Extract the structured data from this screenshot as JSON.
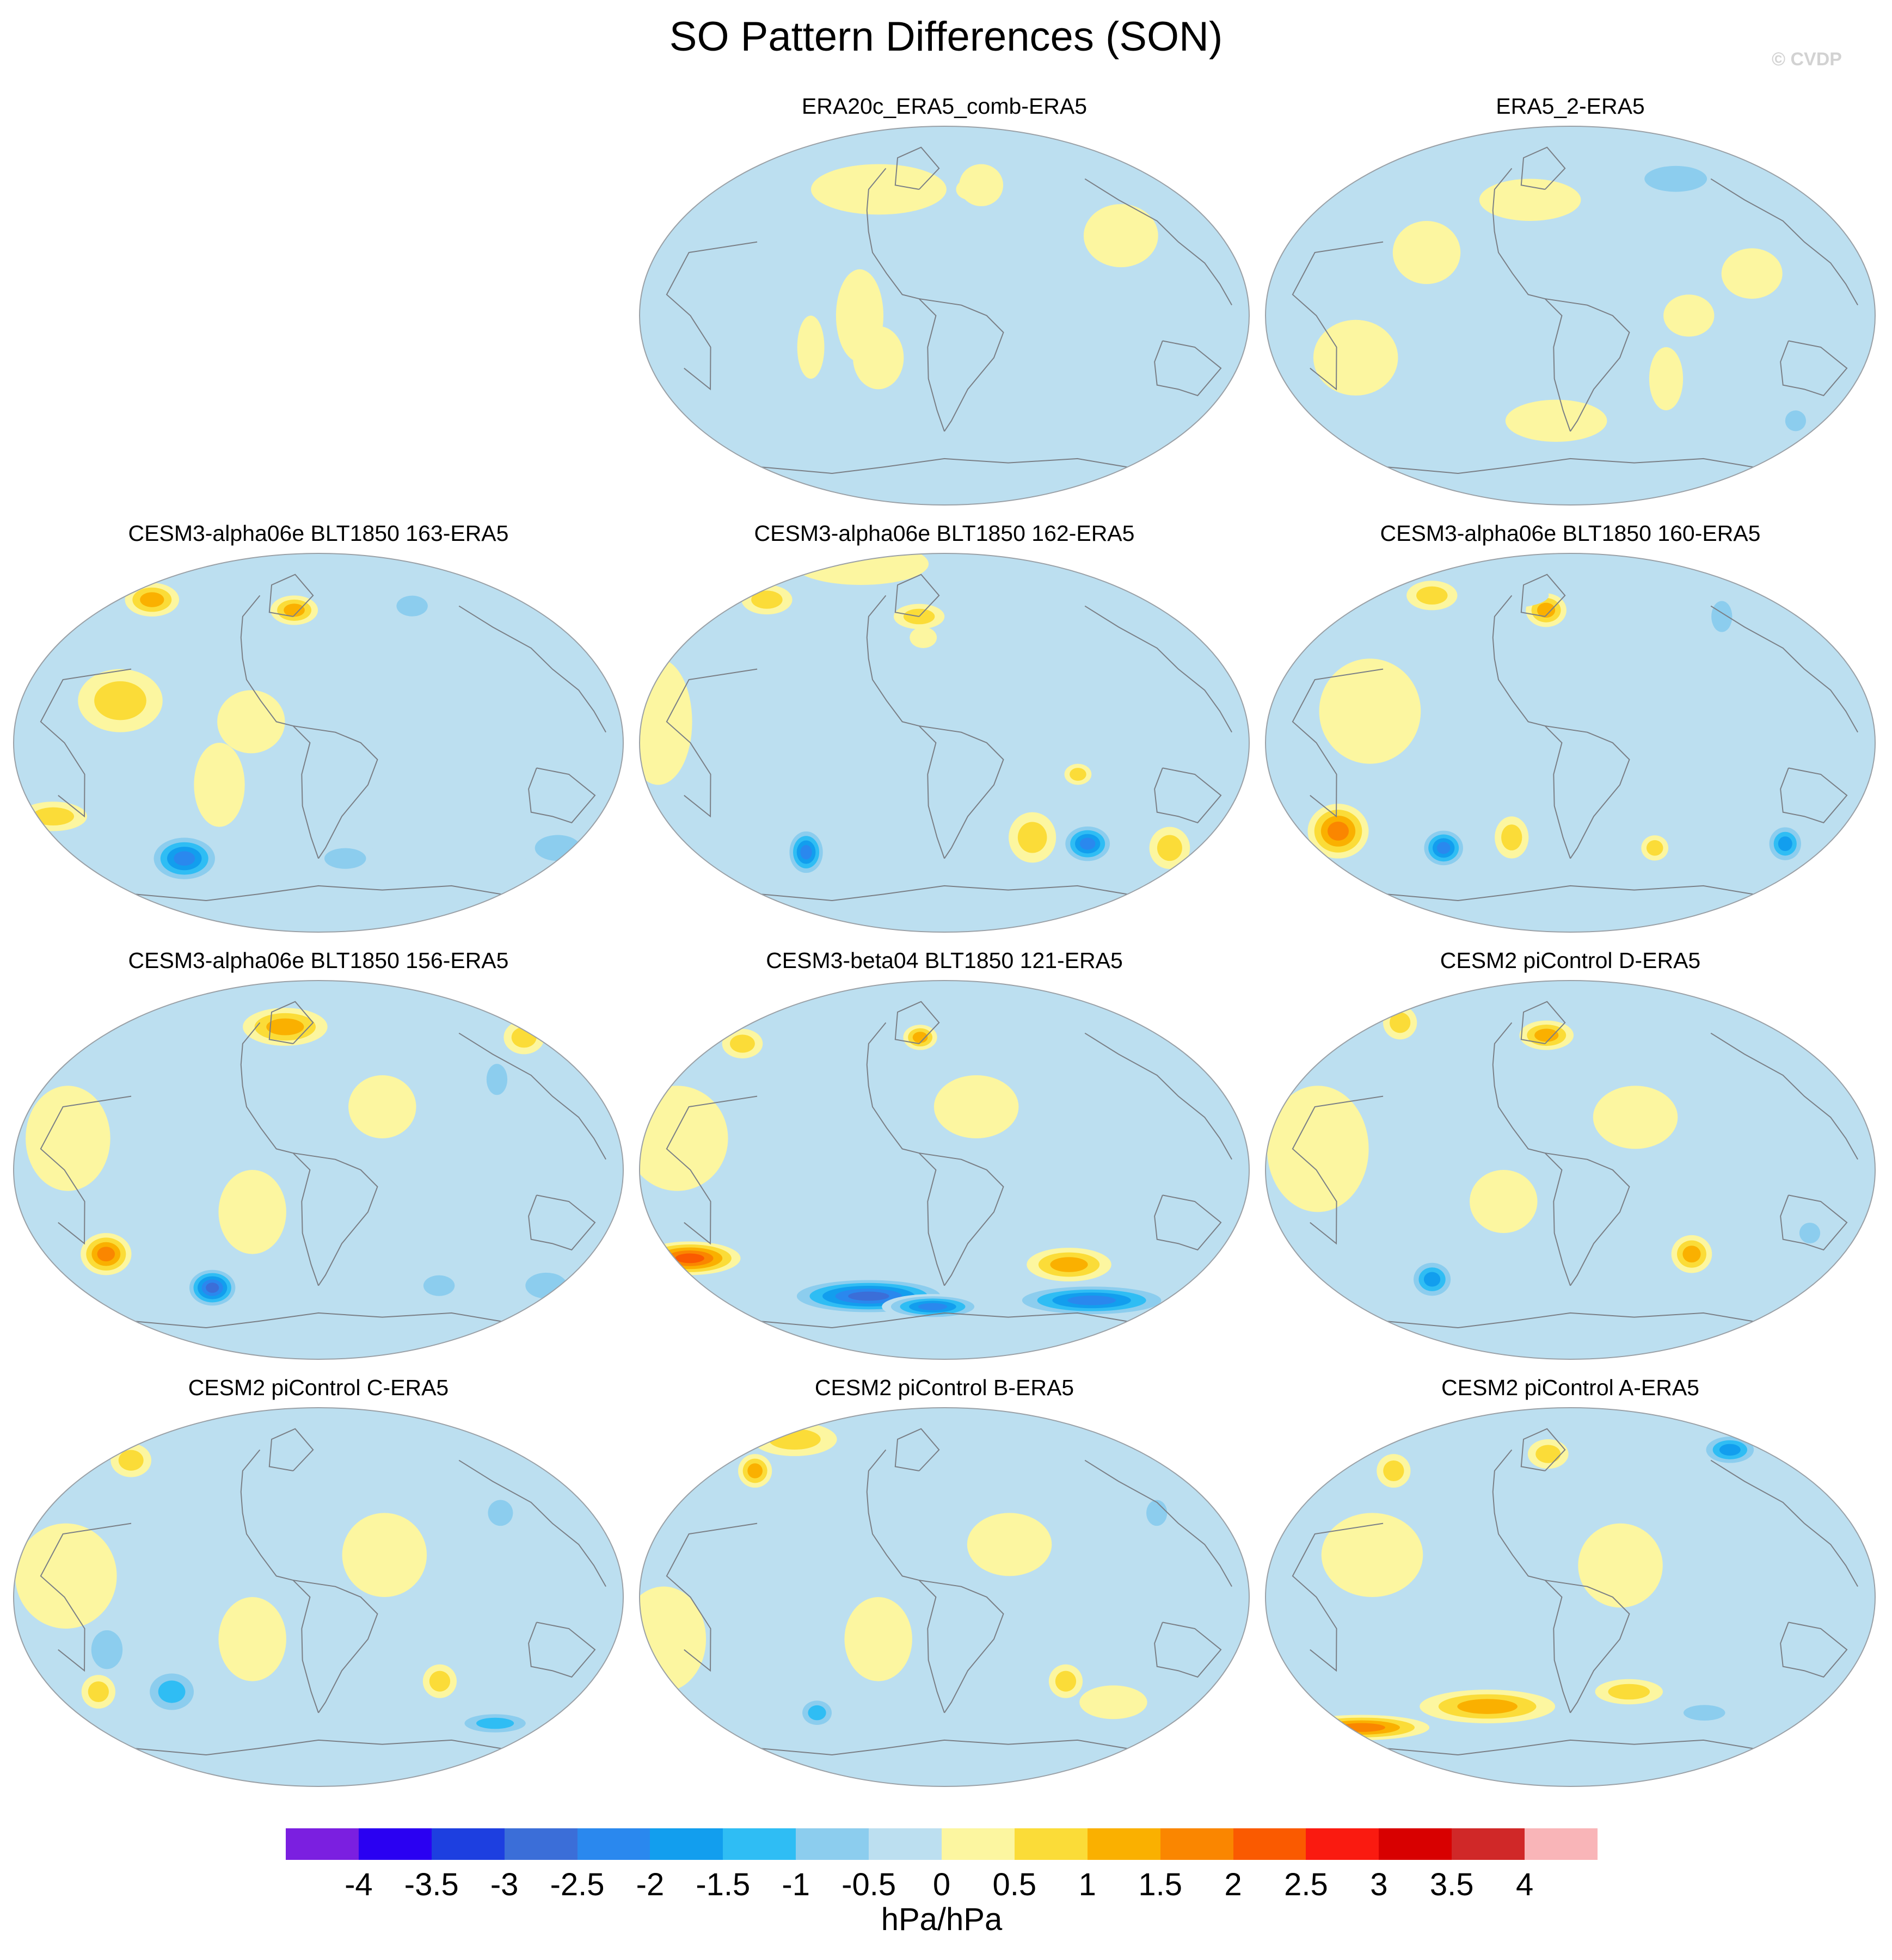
{
  "title": "SO Pattern Differences (SON)",
  "watermark": "© CVDP",
  "chart_data": {
    "type": "map-grid",
    "variable": "SO pattern difference",
    "season": "SON",
    "projection": "Robinson-like global map (Pacific-centered)",
    "panels": [
      {
        "title": "ERA20c_ERA5_comb-ERA5",
        "blobs": [
          [
            30,
            62,
            13,
            10,
            0.3
          ],
          [
            -52,
            60,
            40,
            12,
            0.3
          ],
          [
            115,
            38,
            22,
            15,
            0.3
          ],
          [
            -50,
            0,
            14,
            22,
            0.3
          ],
          [
            -40,
            -20,
            15,
            15,
            0.3
          ],
          [
            -80,
            -15,
            8,
            15,
            0.3
          ],
          [
            20,
            60,
            8,
            5,
            0.3
          ]
        ]
      },
      {
        "title": "ERA5_2-ERA5",
        "blobs": [
          [
            -130,
            -20,
            25,
            18,
            0.4
          ],
          [
            110,
            20,
            18,
            12,
            0.3
          ],
          [
            -30,
            55,
            30,
            10,
            0.3
          ],
          [
            -10,
            -50,
            30,
            10,
            0.3
          ],
          [
            160,
            -50,
            10,
            8,
            -0.7
          ],
          [
            90,
            65,
            30,
            10,
            -0.6
          ],
          [
            60,
            -30,
            10,
            15,
            0.4
          ],
          [
            -90,
            30,
            20,
            15,
            0.4
          ],
          [
            70,
            0,
            15,
            10,
            0.3
          ]
        ]
      },
      {
        "title": "CESM3-alpha06e BLT1850 163-ERA5",
        "blobs": [
          [
            -150,
            68,
            16,
            8,
            1.2
          ],
          [
            -20,
            63,
            14,
            7,
            1.2
          ],
          [
            -100,
            -55,
            22,
            12,
            -2.2
          ],
          [
            170,
            -50,
            22,
            10,
            -1.0
          ],
          [
            -170,
            -35,
            20,
            7,
            0.9
          ],
          [
            80,
            65,
            15,
            8,
            -0.6
          ],
          [
            -120,
            20,
            25,
            15,
            0.6
          ],
          [
            -40,
            10,
            20,
            15,
            0.4
          ],
          [
            20,
            -55,
            20,
            8,
            -0.8
          ],
          [
            -60,
            -20,
            15,
            20,
            0.4
          ]
        ]
      },
      {
        "title": "CESM3-alpha06e BLT1850 162-ERA5",
        "blobs": [
          [
            100,
            -48,
            16,
            10,
            -2.1
          ],
          [
            -100,
            -52,
            12,
            12,
            -2.5
          ],
          [
            160,
            -50,
            12,
            10,
            0.9
          ],
          [
            60,
            -45,
            14,
            12,
            1.0
          ],
          [
            -160,
            68,
            15,
            7,
            1.0
          ],
          [
            -20,
            60,
            15,
            6,
            0.8
          ],
          [
            -150,
            85,
            40,
            10,
            0.5
          ],
          [
            -170,
            10,
            20,
            30,
            0.4
          ],
          [
            80,
            -15,
            8,
            5,
            0.6
          ],
          [
            -15,
            50,
            8,
            5,
            0.5
          ]
        ]
      },
      {
        "title": "CESM3-alpha06e BLT1850 160-ERA5",
        "blobs": [
          [
            -155,
            -42,
            18,
            13,
            1.7
          ],
          [
            -90,
            -50,
            14,
            10,
            -2.3
          ],
          [
            150,
            -48,
            12,
            10,
            -2.0
          ],
          [
            -20,
            63,
            12,
            8,
            1.4
          ],
          [
            -130,
            70,
            15,
            7,
            1.0
          ],
          [
            -40,
            -45,
            10,
            10,
            1.0
          ],
          [
            60,
            -50,
            8,
            6,
            0.6
          ],
          [
            120,
            60,
            10,
            12,
            -1.0
          ],
          [
            -120,
            15,
            30,
            25,
            0.4
          ],
          [
            -60,
            70,
            25,
            6,
            -0.5
          ]
        ]
      },
      {
        "title": "CESM3-alpha06e BLT1850 156-ERA5",
        "blobs": [
          [
            -140,
            -40,
            15,
            10,
            1.7
          ],
          [
            -80,
            -56,
            16,
            10,
            -2.9
          ],
          [
            -30,
            68,
            25,
            9,
            1.3
          ],
          [
            170,
            63,
            12,
            8,
            1.0
          ],
          [
            120,
            43,
            10,
            12,
            -1.0
          ],
          [
            170,
            -55,
            20,
            10,
            -0.9
          ],
          [
            -150,
            15,
            25,
            25,
            0.5
          ],
          [
            40,
            30,
            20,
            15,
            0.4
          ],
          [
            -40,
            -20,
            20,
            20,
            0.3
          ],
          [
            90,
            -55,
            15,
            8,
            -0.8
          ]
        ]
      },
      {
        "title": "CESM3-beta04 BLT1850 121-ERA5",
        "blobs": [
          [
            -170,
            -42,
            30,
            8,
            2.2
          ],
          [
            85,
            -45,
            25,
            8,
            1.4
          ],
          [
            -60,
            -60,
            50,
            9,
            -2.6
          ],
          [
            120,
            -62,
            50,
            8,
            -2.4
          ],
          [
            -10,
            -65,
            30,
            6,
            -2.4
          ],
          [
            -20,
            63,
            10,
            6,
            1.2
          ],
          [
            -160,
            60,
            12,
            7,
            0.8
          ],
          [
            -160,
            15,
            30,
            25,
            0.4
          ],
          [
            20,
            30,
            25,
            15,
            0.4
          ],
          [
            160,
            10,
            20,
            20,
            -0.4
          ]
        ]
      },
      {
        "title": "CESM2 piControl D-ERA5",
        "blobs": [
          [
            -100,
            -52,
            14,
            10,
            -2.0
          ],
          [
            -20,
            64,
            16,
            7,
            1.4
          ],
          [
            80,
            -40,
            12,
            9,
            1.1
          ],
          [
            150,
            -30,
            10,
            8,
            -0.7
          ],
          [
            -160,
            70,
            10,
            8,
            0.8
          ],
          [
            -150,
            10,
            30,
            30,
            0.4
          ],
          [
            40,
            25,
            25,
            15,
            0.4
          ],
          [
            -40,
            -15,
            20,
            15,
            0.4
          ],
          [
            120,
            60,
            20,
            12,
            -0.4
          ]
        ]
      },
      {
        "title": "CESM2 piControl C-ERA5",
        "blobs": [
          [
            80,
            -40,
            10,
            8,
            1.0
          ],
          [
            -100,
            -45,
            18,
            12,
            -1.2
          ],
          [
            140,
            -60,
            25,
            6,
            -1.3
          ],
          [
            -160,
            65,
            12,
            8,
            1.0
          ],
          [
            120,
            40,
            12,
            10,
            -0.6
          ],
          [
            -130,
            -25,
            15,
            15,
            -0.6
          ],
          [
            -150,
            10,
            30,
            25,
            0.4
          ],
          [
            40,
            20,
            25,
            20,
            0.4
          ],
          [
            -40,
            -20,
            20,
            20,
            0.4
          ],
          [
            -150,
            -45,
            10,
            8,
            0.6
          ]
        ]
      },
      {
        "title": "CESM2 piControl B-ERA5",
        "blobs": [
          [
            -150,
            60,
            10,
            8,
            1.3
          ],
          [
            -95,
            -55,
            12,
            8,
            -1.5
          ],
          [
            140,
            40,
            10,
            10,
            -0.6
          ],
          [
            -160,
            75,
            25,
            8,
            0.8
          ],
          [
            -170,
            -20,
            25,
            25,
            0.4
          ],
          [
            40,
            25,
            25,
            15,
            0.4
          ],
          [
            -40,
            -20,
            20,
            20,
            0.4
          ],
          [
            80,
            -40,
            10,
            8,
            0.6
          ],
          [
            120,
            -50,
            20,
            8,
            0.5
          ]
        ]
      },
      {
        "title": "CESM2 piControl A-ERA5",
        "blobs": [
          [
            150,
            70,
            18,
            8,
            -2.0
          ],
          [
            -60,
            -52,
            40,
            8,
            1.2
          ],
          [
            -170,
            -62,
            40,
            6,
            1.6
          ],
          [
            40,
            -45,
            20,
            6,
            0.9
          ],
          [
            -20,
            68,
            12,
            7,
            0.9
          ],
          [
            -140,
            60,
            10,
            8,
            0.8
          ],
          [
            -120,
            20,
            30,
            20,
            0.4
          ],
          [
            30,
            15,
            25,
            20,
            0.4
          ],
          [
            100,
            -55,
            20,
            6,
            -1.0
          ],
          [
            80,
            30,
            15,
            10,
            -0.5
          ]
        ]
      }
    ]
  },
  "colorbar": {
    "colors": [
      "#7b1fe0",
      "#2a00f2",
      "#1d3fe0",
      "#3b6ed8",
      "#2a88ee",
      "#129eee",
      "#2fbdf4",
      "#8ccdee",
      "#bcdff0",
      "#fcf6a0",
      "#fbdc38",
      "#fab000",
      "#fa8600",
      "#fa5a00",
      "#fa1a10",
      "#d80000",
      "#d02828",
      "#f9b5b8"
    ],
    "ticks": [
      "-4",
      "-3.5",
      "-3",
      "-2.5",
      "-2",
      "-1.5",
      "-1",
      "-0.5",
      "0",
      "0.5",
      "1",
      "1.5",
      "2",
      "2.5",
      "3",
      "3.5",
      "4"
    ],
    "unit": "hPa/hPa"
  }
}
